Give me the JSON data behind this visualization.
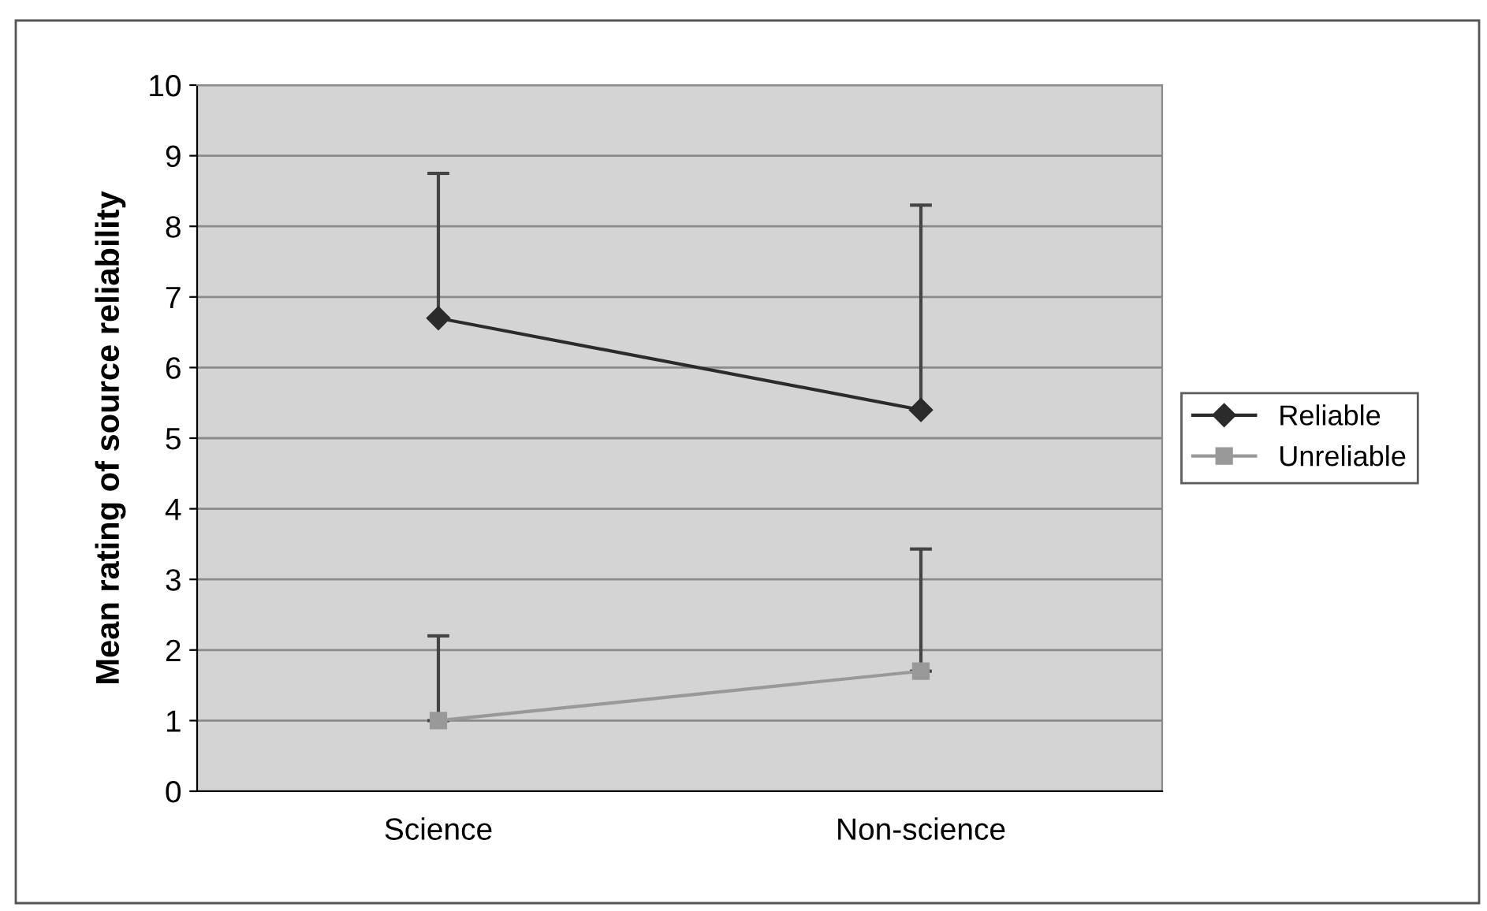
{
  "chart_data": {
    "type": "line",
    "ylabel": "Mean rating of source reliability",
    "categories": [
      "Science",
      "Non-science"
    ],
    "series": [
      {
        "name": "Reliable",
        "color": "#2b2b2b",
        "marker": "diamond",
        "values": [
          6.7,
          5.4
        ],
        "errors": [
          [
            6.7,
            8.75
          ],
          [
            5.4,
            8.3
          ]
        ]
      },
      {
        "name": "Unreliable",
        "color": "#999999",
        "marker": "square",
        "values": [
          1.0,
          1.7
        ],
        "errors": [
          [
            1.0,
            2.2
          ],
          [
            1.7,
            3.43
          ]
        ]
      }
    ],
    "ylim": [
      0,
      10
    ],
    "yticks": [
      0,
      1,
      2,
      3,
      4,
      5,
      6,
      7,
      8,
      9,
      10
    ],
    "grid": "y",
    "legend": "right"
  }
}
